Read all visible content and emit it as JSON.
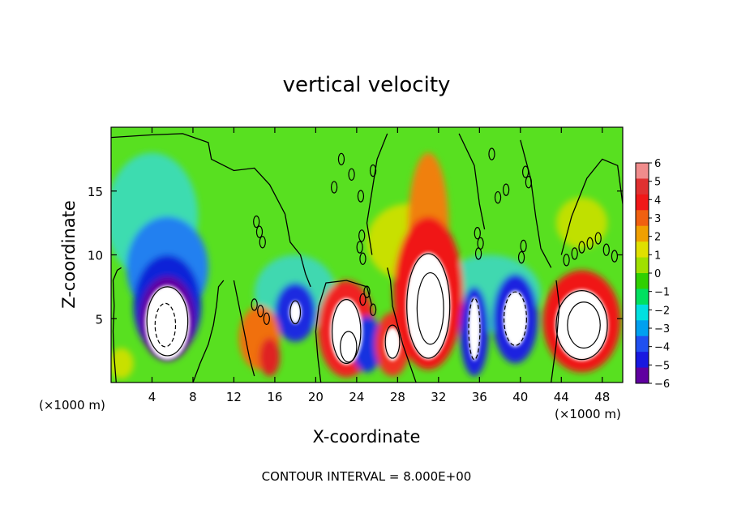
{
  "chart_data": {
    "type": "heatmap",
    "title": "vertical velocity",
    "xlabel": "X-coordinate",
    "ylabel": "Z-coordinate",
    "x_unit_left": "(×1000 m)",
    "x_unit_right": "(×1000 m)",
    "xlim": [
      0,
      50
    ],
    "ylim": [
      0,
      20
    ],
    "x_ticks": [
      4,
      8,
      12,
      16,
      20,
      24,
      28,
      32,
      36,
      40,
      44,
      48
    ],
    "y_ticks": [
      5,
      10,
      15
    ],
    "footer": "CONTOUR INTERVAL = 8.000E+00",
    "colorbar": {
      "levels": [
        6,
        5,
        4,
        3,
        2,
        1,
        0,
        -1,
        -2,
        -3,
        -4,
        -5,
        -6
      ],
      "labels": [
        "6",
        "5",
        "4",
        "3",
        "2",
        "1",
        "0",
        "−1",
        "−2",
        "−3",
        "−4",
        "−5",
        "−6"
      ],
      "colors": [
        "#f08c8c",
        "#e03030",
        "#f01818",
        "#f06010",
        "#f0a000",
        "#e0e000",
        "#a0e000",
        "#30d000",
        "#00e060",
        "#00e0e0",
        "#00a0f0",
        "#2050f0",
        "#1818e0",
        "#6000a0"
      ]
    },
    "features": [
      {
        "kind": "downdraft",
        "x": 6,
        "z": 4.5,
        "min_value": -6,
        "note": "strong negative core (saturated white)"
      },
      {
        "kind": "downdraft",
        "x": 18,
        "z": 5,
        "min_value": -4
      },
      {
        "kind": "updraft",
        "x": 14.5,
        "z": 3.5,
        "max_value": 4
      },
      {
        "kind": "updraft",
        "x": 23,
        "z": 4,
        "max_value": 6,
        "note": "saturated white core"
      },
      {
        "kind": "updraft",
        "x": 27.5,
        "z": 3,
        "max_value": 6
      },
      {
        "kind": "updraft",
        "x": 31,
        "z": 6,
        "max_value": 6,
        "note": "tall plume reaching ~18 km"
      },
      {
        "kind": "downdraft",
        "x": 35.5,
        "z": 4,
        "min_value": -6
      },
      {
        "kind": "downdraft",
        "x": 39.5,
        "z": 5,
        "min_value": -6
      },
      {
        "kind": "updraft",
        "x": 46,
        "z": 4.5,
        "max_value": 6
      }
    ]
  }
}
